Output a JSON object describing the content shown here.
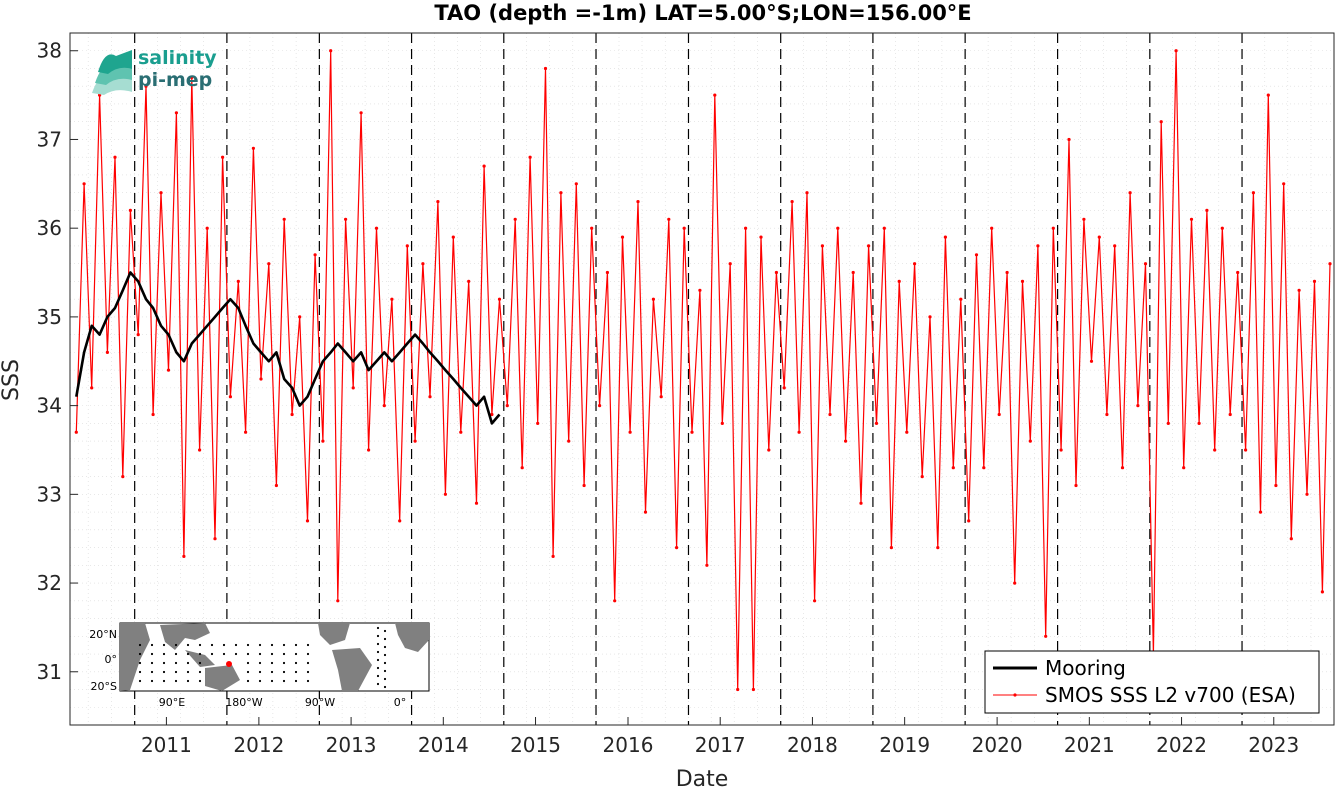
{
  "chart_data": {
    "type": "line",
    "title": "TAO (depth =-1m) LAT=5.00°S;LON=156.00°E",
    "xlabel": "Date",
    "ylabel": "SSS",
    "xlim": [
      "2010-04-20",
      "2023-12-31"
    ],
    "ylim": [
      30.4,
      38.2
    ],
    "x_tick_labels": [
      "2011",
      "2012",
      "2013",
      "2014",
      "2015",
      "2016",
      "2017",
      "2018",
      "2019",
      "2020",
      "2021",
      "2022",
      "2023"
    ],
    "y_tick_labels": [
      "31",
      "32",
      "33",
      "34",
      "35",
      "36",
      "37",
      "38"
    ],
    "year_dividers": [
      "2011-01-01",
      "2012-01-01",
      "2013-01-01",
      "2014-01-01",
      "2015-01-01",
      "2016-01-01",
      "2017-01-01",
      "2018-01-01",
      "2019-01-01",
      "2020-01-01",
      "2021-01-01",
      "2022-01-01",
      "2023-01-01"
    ],
    "grid": true,
    "legend_position": "bottom-right",
    "series": [
      {
        "name": "Mooring",
        "color": "#000000",
        "style": "thick-line",
        "x": [
          "2010-05",
          "2010-06",
          "2010-07",
          "2010-08",
          "2010-09",
          "2010-10",
          "2010-11",
          "2010-12",
          "2011-01",
          "2011-02",
          "2011-03",
          "2011-04",
          "2011-05",
          "2011-06",
          "2011-07",
          "2011-08",
          "2011-09",
          "2011-10",
          "2011-11",
          "2011-12",
          "2012-01",
          "2012-02",
          "2012-03",
          "2012-04",
          "2012-05",
          "2012-06",
          "2012-07",
          "2012-08",
          "2012-09",
          "2012-10",
          "2012-11",
          "2012-12",
          "2013-01",
          "2013-02",
          "2013-03",
          "2013-04",
          "2013-05",
          "2013-06",
          "2013-07",
          "2013-08",
          "2013-09",
          "2013-10",
          "2013-11",
          "2013-12",
          "2014-01",
          "2014-02",
          "2014-03",
          "2014-04",
          "2014-05",
          "2014-06",
          "2014-07",
          "2014-08",
          "2014-09",
          "2014-10",
          "2014-11",
          "2014-12"
        ],
        "values": [
          34.1,
          34.6,
          34.9,
          34.8,
          35.0,
          35.1,
          35.3,
          35.5,
          35.4,
          35.2,
          35.1,
          34.9,
          34.8,
          34.6,
          34.5,
          34.7,
          34.8,
          34.9,
          35.0,
          35.1,
          35.2,
          35.1,
          34.9,
          34.7,
          34.6,
          34.5,
          34.6,
          34.3,
          34.2,
          34.0,
          34.1,
          34.3,
          34.5,
          34.6,
          34.7,
          34.6,
          34.5,
          34.6,
          34.4,
          34.5,
          34.6,
          34.5,
          34.6,
          34.7,
          34.8,
          34.7,
          34.6,
          34.5,
          34.4,
          34.3,
          34.2,
          34.1,
          34.0,
          34.1,
          33.8,
          33.9
        ]
      },
      {
        "name": "SMOS SSS L2 v700 (ESA)",
        "color": "#ff0000",
        "style": "line-with-points",
        "x": [
          "2010-05",
          "2010-06",
          "2010-07",
          "2010-08",
          "2010-09",
          "2010-10",
          "2010-11",
          "2010-12",
          "2011-01",
          "2011-02",
          "2011-03",
          "2011-04",
          "2011-05",
          "2011-06",
          "2011-07",
          "2011-08",
          "2011-09",
          "2011-10",
          "2011-11",
          "2011-12",
          "2012-01",
          "2012-02",
          "2012-03",
          "2012-04",
          "2012-05",
          "2012-06",
          "2012-07",
          "2012-08",
          "2012-09",
          "2012-10",
          "2012-11",
          "2012-12",
          "2013-01",
          "2013-02",
          "2013-03",
          "2013-04",
          "2013-05",
          "2013-06",
          "2013-07",
          "2013-08",
          "2013-09",
          "2013-10",
          "2013-11",
          "2013-12",
          "2014-01",
          "2014-02",
          "2014-03",
          "2014-04",
          "2014-05",
          "2014-06",
          "2014-07",
          "2014-08",
          "2014-09",
          "2014-10",
          "2014-11",
          "2014-12",
          "2015-01",
          "2015-02",
          "2015-03",
          "2015-04",
          "2015-05",
          "2015-06",
          "2015-07",
          "2015-08",
          "2015-09",
          "2015-10",
          "2015-11",
          "2015-12",
          "2016-01",
          "2016-02",
          "2016-03",
          "2016-04",
          "2016-05",
          "2016-06",
          "2016-07",
          "2016-08",
          "2016-09",
          "2016-10",
          "2016-11",
          "2016-12",
          "2017-01",
          "2017-02",
          "2017-03",
          "2017-04",
          "2017-05",
          "2017-06",
          "2017-07",
          "2017-08",
          "2017-09",
          "2017-10",
          "2017-11",
          "2017-12",
          "2018-01",
          "2018-02",
          "2018-03",
          "2018-04",
          "2018-05",
          "2018-06",
          "2018-07",
          "2018-08",
          "2018-09",
          "2018-10",
          "2018-11",
          "2018-12",
          "2019-01",
          "2019-02",
          "2019-03",
          "2019-04",
          "2019-05",
          "2019-06",
          "2019-07",
          "2019-08",
          "2019-09",
          "2019-10",
          "2019-11",
          "2019-12",
          "2020-01",
          "2020-02",
          "2020-03",
          "2020-04",
          "2020-05",
          "2020-06",
          "2020-07",
          "2020-08",
          "2020-09",
          "2020-10",
          "2020-11",
          "2020-12",
          "2021-01",
          "2021-02",
          "2021-03",
          "2021-04",
          "2021-05",
          "2021-06",
          "2021-07",
          "2021-08",
          "2021-09",
          "2021-10",
          "2021-11",
          "2021-12",
          "2022-01",
          "2022-02",
          "2022-03",
          "2022-04",
          "2022-05",
          "2022-06",
          "2022-07",
          "2022-08",
          "2022-09",
          "2022-10",
          "2022-11",
          "2022-12",
          "2023-01",
          "2023-02",
          "2023-03",
          "2023-04",
          "2023-05",
          "2023-06",
          "2023-07",
          "2023-08",
          "2023-09",
          "2023-10",
          "2023-11",
          "2023-12"
        ],
        "values": [
          33.7,
          36.5,
          34.2,
          37.5,
          34.6,
          36.8,
          33.2,
          36.2,
          34.8,
          37.6,
          33.9,
          36.4,
          34.4,
          37.3,
          32.3,
          37.7,
          33.5,
          36.0,
          32.5,
          36.8,
          34.1,
          35.4,
          33.7,
          36.9,
          34.3,
          35.6,
          33.1,
          36.1,
          33.9,
          35.0,
          32.7,
          35.7,
          33.6,
          38.0,
          31.8,
          36.1,
          34.2,
          37.3,
          33.5,
          36.0,
          34.0,
          35.2,
          32.7,
          35.8,
          33.6,
          35.6,
          34.1,
          36.3,
          33.0,
          35.9,
          33.7,
          35.4,
          32.9,
          36.7,
          33.9,
          35.2,
          34.0,
          36.1,
          33.3,
          36.8,
          33.8,
          37.8,
          32.3,
          36.4,
          33.6,
          36.5,
          33.1,
          36.0,
          34.0,
          35.5,
          31.8,
          35.9,
          33.7,
          36.3,
          32.8,
          35.2,
          34.1,
          36.1,
          32.4,
          36.0,
          33.7,
          35.3,
          32.2,
          37.5,
          33.8,
          35.6,
          30.8,
          36.0,
          30.8,
          35.9,
          33.5,
          35.5,
          34.2,
          36.3,
          33.7,
          36.4,
          31.8,
          35.8,
          33.9,
          36.0,
          33.6,
          35.5,
          32.9,
          35.8,
          33.8,
          36.0,
          32.4,
          35.4,
          33.7,
          35.6,
          33.2,
          35.0,
          32.4,
          35.9,
          33.3,
          35.2,
          32.7,
          35.7,
          33.3,
          36.0,
          33.9,
          35.5,
          32.0,
          35.4,
          33.6,
          35.8,
          31.4,
          36.0,
          33.5,
          37.0,
          33.1,
          36.1,
          34.5,
          35.9,
          33.9,
          35.8,
          33.3,
          36.4,
          34.0,
          35.6,
          31.2,
          37.2,
          33.8,
          38.0,
          33.3,
          36.1,
          33.8,
          36.2,
          33.5,
          36.0,
          33.9,
          35.5,
          33.5,
          36.4,
          32.8,
          37.5,
          33.1,
          36.5,
          32.5,
          35.3,
          33.0,
          35.4,
          31.9,
          35.6
        ]
      }
    ]
  },
  "logo": {
    "line1": "salinity",
    "line2": "pi-mep",
    "color_line1": "#1a9e8f",
    "color_line2": "#2a6e73"
  },
  "inset_map": {
    "lat_labels": [
      "20°N",
      "0°",
      "20°S"
    ],
    "lon_labels": [
      "90°E",
      "180°W",
      "90°W",
      "0°"
    ],
    "land_color": "#808080",
    "marker_color": "#ff0000"
  },
  "colors": {
    "mooring": "#000000",
    "smos": "#ff0000",
    "grid": "#d9d9d9",
    "divider": "#000000"
  }
}
